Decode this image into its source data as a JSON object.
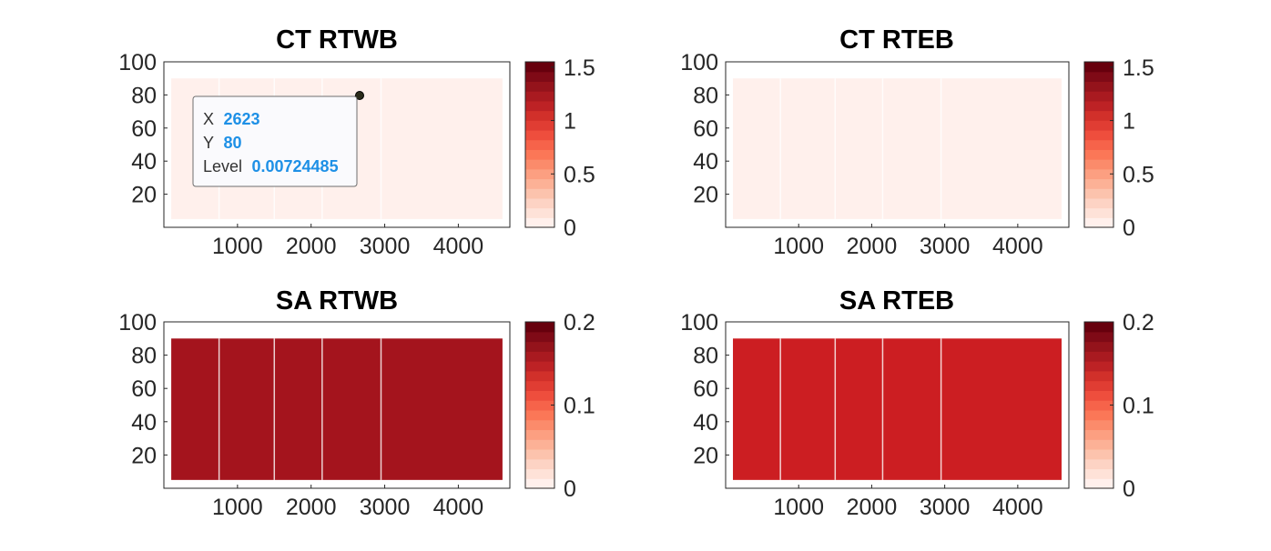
{
  "colors": {
    "scale": [
      "#fff0ec",
      "#fee2d8",
      "#fdd3c4",
      "#fcc3ad",
      "#fcb196",
      "#fc9f81",
      "#fb8b6b",
      "#fb7757",
      "#f6634a",
      "#ee4e3d",
      "#e03d33",
      "#d1302a",
      "#bd2225",
      "#a91a20",
      "#94131b",
      "#7f0a16",
      "#67000d"
    ],
    "sa_west_fill": "#a4141d",
    "sa_east_fill": "#cc1e22",
    "ct_fill": "#fff0ec",
    "tooltip_value": "#1e90e6"
  },
  "datatip": {
    "x_label": "X",
    "x_value": "2623",
    "y_label": "Y",
    "y_value": "80",
    "level_label": "Level",
    "level_value": "0.00724485"
  },
  "chart_data": [
    {
      "type": "heatmap",
      "title": "CT RTWB",
      "xlim": [
        0,
        4700
      ],
      "ylim": [
        0,
        100
      ],
      "xticks": [
        1000,
        2000,
        3000,
        4000
      ],
      "yticks": [
        20,
        40,
        60,
        80,
        100
      ],
      "data_extent": {
        "x": [
          100,
          4600
        ],
        "y": [
          5,
          90
        ]
      },
      "fill_level": 0.007,
      "colorbar": {
        "ticks": [
          0,
          0.5,
          1,
          1.5
        ],
        "tick_labels": [
          "0",
          "0.5",
          "1",
          "1.5"
        ],
        "range": [
          0,
          1.55
        ]
      },
      "section_breaks": [
        750,
        1500,
        2150,
        2950
      ],
      "datatip": {
        "x": 2623,
        "y": 80,
        "level": 0.00724485
      }
    },
    {
      "type": "heatmap",
      "title": "CT RTEB",
      "xlim": [
        0,
        4700
      ],
      "ylim": [
        0,
        100
      ],
      "xticks": [
        1000,
        2000,
        3000,
        4000
      ],
      "yticks": [
        20,
        40,
        60,
        80,
        100
      ],
      "data_extent": {
        "x": [
          100,
          4600
        ],
        "y": [
          5,
          90
        ]
      },
      "fill_level": 0.007,
      "colorbar": {
        "ticks": [
          0,
          0.5,
          1,
          1.5
        ],
        "tick_labels": [
          "0",
          "0.5",
          "1",
          "1.5"
        ],
        "range": [
          0,
          1.55
        ]
      },
      "section_breaks": [
        750,
        1500,
        2150,
        2950
      ]
    },
    {
      "type": "heatmap",
      "title": "SA RTWB",
      "xlim": [
        0,
        4700
      ],
      "ylim": [
        0,
        100
      ],
      "xticks": [
        1000,
        2000,
        3000,
        4000
      ],
      "yticks": [
        20,
        40,
        60,
        80,
        100
      ],
      "data_extent": {
        "x": [
          100,
          4600
        ],
        "y": [
          5,
          90
        ]
      },
      "fill_level": 0.18,
      "colorbar": {
        "ticks": [
          0,
          0.1,
          0.2
        ],
        "tick_labels": [
          "0",
          "0.1",
          "0.2"
        ],
        "range": [
          0,
          0.2
        ]
      },
      "section_breaks": [
        750,
        1500,
        2150,
        2950
      ]
    },
    {
      "type": "heatmap",
      "title": "SA RTEB",
      "xlim": [
        0,
        4700
      ],
      "ylim": [
        0,
        100
      ],
      "xticks": [
        1000,
        2000,
        3000,
        4000
      ],
      "yticks": [
        20,
        40,
        60,
        80,
        100
      ],
      "data_extent": {
        "x": [
          100,
          4600
        ],
        "y": [
          5,
          90
        ]
      },
      "fill_level": 0.15,
      "colorbar": {
        "ticks": [
          0,
          0.1,
          0.2
        ],
        "tick_labels": [
          "0",
          "0.1",
          "0.2"
        ],
        "range": [
          0,
          0.2
        ]
      },
      "section_breaks": [
        750,
        1500,
        2150,
        2950
      ]
    }
  ]
}
